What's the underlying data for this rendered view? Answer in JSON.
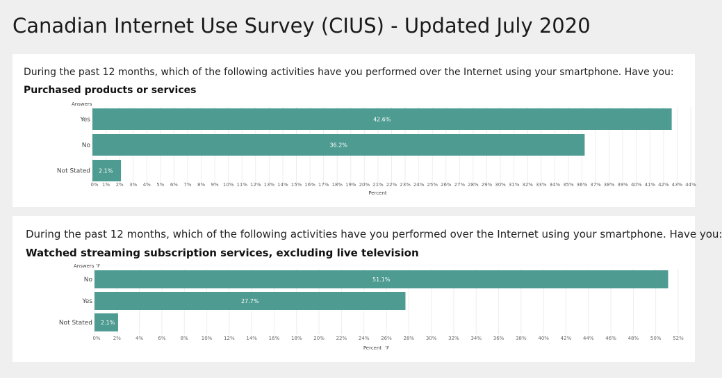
{
  "page": {
    "title": "Canadian Internet Use Survey (CIUS) - Updated July 2020"
  },
  "colors": {
    "bar": "#4d9b91",
    "background": "#efefef",
    "card": "#ffffff"
  },
  "icons": {
    "filter": "funnel-icon"
  },
  "chart_data": [
    {
      "type": "bar",
      "orientation": "horizontal",
      "question": "During the past 12 months, which of the following activities have you performed over the Internet using your smartphone. Have you:",
      "title": "Purchased products or services",
      "ylabel": "Answers",
      "xlabel": "Percent",
      "categories": [
        "Yes",
        "No",
        "Not Stated"
      ],
      "values": [
        42.6,
        36.2,
        2.1
      ],
      "value_labels": [
        "42.6%",
        "36.2%",
        "2.1%"
      ],
      "xlim": [
        0,
        44
      ],
      "x_ticks": [
        0,
        1,
        2,
        3,
        4,
        5,
        6,
        7,
        8,
        9,
        10,
        11,
        12,
        13,
        14,
        15,
        16,
        17,
        18,
        19,
        20,
        21,
        22,
        23,
        24,
        25,
        26,
        27,
        28,
        29,
        30,
        31,
        32,
        33,
        34,
        35,
        36,
        37,
        38,
        39,
        40,
        41,
        42,
        43,
        44
      ],
      "x_tick_labels": [
        "0%",
        "1%",
        "2%",
        "3%",
        "4%",
        "5%",
        "6%",
        "7%",
        "8%",
        "9%",
        "10%",
        "11%",
        "12%",
        "13%",
        "14%",
        "15%",
        "16%",
        "17%",
        "18%",
        "19%",
        "20%",
        "21%",
        "22%",
        "23%",
        "24%",
        "25%",
        "26%",
        "27%",
        "28%",
        "29%",
        "30%",
        "31%",
        "32%",
        "33%",
        "34%",
        "35%",
        "36%",
        "37%",
        "38%",
        "39%",
        "40%",
        "41%",
        "42%",
        "43%",
        "44%"
      ],
      "grid": true,
      "filter_icons": false
    },
    {
      "type": "bar",
      "orientation": "horizontal",
      "question": "During the past 12 months, which of the following activities have you performed over the Internet using your smartphone. Have you:",
      "title": "Watched streaming subscription services, excluding live television",
      "ylabel": "Answers",
      "xlabel": "Percent",
      "categories": [
        "No",
        "Yes",
        "Not Stated"
      ],
      "values": [
        51.1,
        27.7,
        2.1
      ],
      "value_labels": [
        "51.1%",
        "27.7%",
        "2.1%"
      ],
      "xlim": [
        0,
        52
      ],
      "x_ticks": [
        0,
        2,
        4,
        6,
        8,
        10,
        12,
        14,
        16,
        18,
        20,
        22,
        24,
        26,
        28,
        30,
        32,
        34,
        36,
        38,
        40,
        42,
        44,
        46,
        48,
        50,
        52
      ],
      "x_tick_labels": [
        "0%",
        "2%",
        "4%",
        "6%",
        "8%",
        "10%",
        "12%",
        "14%",
        "16%",
        "18%",
        "20%",
        "22%",
        "24%",
        "26%",
        "28%",
        "30%",
        "32%",
        "34%",
        "36%",
        "38%",
        "40%",
        "42%",
        "44%",
        "46%",
        "48%",
        "50%",
        "52%"
      ],
      "grid": true,
      "filter_icons": true
    }
  ]
}
